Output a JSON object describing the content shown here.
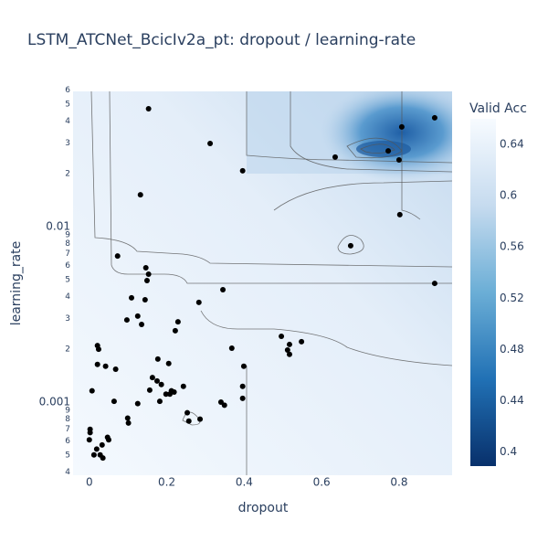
{
  "chart_data": {
    "type": "contour",
    "title": "LSTM_ATCNet_BcicIv2a_pt: dropout / learning-rate",
    "x_label": "dropout",
    "y_label": "learning_rate",
    "colorbar_title": "Valid Acc",
    "marker_color": "#000000",
    "y_log": true,
    "xlim": [
      -0.042,
      0.937
    ],
    "xticks": [
      0,
      0.2,
      0.4,
      0.6,
      0.8
    ],
    "ylim": [
      0.000383,
      0.059
    ],
    "yticks": [
      {
        "value": 0.0004,
        "label": "4"
      },
      {
        "value": 0.0005,
        "label": "5"
      },
      {
        "value": 0.0006,
        "label": "6"
      },
      {
        "value": 0.0007,
        "label": "7"
      },
      {
        "value": 0.0008,
        "label": "8"
      },
      {
        "value": 0.0009,
        "label": "9"
      },
      0.001,
      {
        "value": 0.002,
        "label": "2"
      },
      {
        "value": 0.003,
        "label": "3"
      },
      {
        "value": 0.004,
        "label": "4"
      },
      {
        "value": 0.005,
        "label": "5"
      },
      {
        "value": 0.006,
        "label": "6"
      },
      {
        "value": 0.007,
        "label": "7"
      },
      {
        "value": 0.008,
        "label": "8"
      },
      {
        "value": 0.009,
        "label": "9"
      },
      0.01,
      {
        "value": 0.02,
        "label": "2"
      },
      {
        "value": 0.03,
        "label": "3"
      },
      {
        "value": 0.04,
        "label": "4"
      },
      {
        "value": 0.05,
        "label": "5"
      },
      {
        "value": 0.06,
        "label": "6"
      }
    ],
    "clim": [
      0.389,
      0.66
    ],
    "cticks": [
      0.4,
      0.44,
      0.48,
      0.52,
      0.56,
      0.6,
      0.64
    ],
    "x": [
      0.153,
      0.312,
      0.396,
      0.132,
      0.073,
      0.146,
      0.153,
      0.149,
      0.109,
      0.144,
      0.283,
      0.345,
      0.125,
      0.097,
      0.135,
      0.229,
      0.222,
      0.021,
      0.024,
      0.368,
      0.496,
      0.517,
      0.548,
      0.512,
      0.517,
      0.021,
      0.042,
      0.068,
      0.177,
      0.205,
      0.163,
      0.175,
      0.186,
      0.243,
      0.156,
      0.399,
      0.212,
      0.198,
      0.208,
      0.219,
      0.396,
      0.396,
      0.182,
      0.125,
      0.34,
      0.349,
      0.007,
      0.064,
      0.253,
      0.257,
      0.286,
      0.099,
      0.101,
      0.002,
      0.002,
      0,
      0.047,
      0.05,
      0.033,
      0.019,
      0.028,
      0.012,
      0.035,
      0.675,
      0.635,
      0.8,
      0.772,
      0.807,
      0.892,
      0.802,
      0.892
    ],
    "y": [
      0.047,
      0.0298,
      0.0208,
      0.0152,
      0.0068,
      0.00583,
      0.00536,
      0.00493,
      0.00393,
      0.00383,
      0.0037,
      0.00437,
      0.00309,
      0.00294,
      0.00277,
      0.00287,
      0.00255,
      0.0021,
      0.002,
      0.00203,
      0.00237,
      0.00213,
      0.00221,
      0.00198,
      0.00187,
      0.00164,
      0.0016,
      0.00154,
      0.00176,
      0.00166,
      0.00138,
      0.00132,
      0.00126,
      0.00123,
      0.00117,
      0.0016,
      0.00116,
      0.00111,
      0.00111,
      0.00114,
      0.00123,
      0.00105,
      0.00101,
      0.00098,
      0.001,
      0.00096,
      0.00116,
      0.00101,
      0.00087,
      0.00078,
      0.0008,
      0.00081,
      0.00076,
      0.0007,
      0.00067,
      0.00061,
      0.00063,
      0.00061,
      0.00057,
      0.00054,
      0.0005,
      0.0005,
      0.00048,
      0.00778,
      0.0249,
      0.024,
      0.027,
      0.037,
      0.0417,
      0.0117,
      0.00475
    ]
  }
}
